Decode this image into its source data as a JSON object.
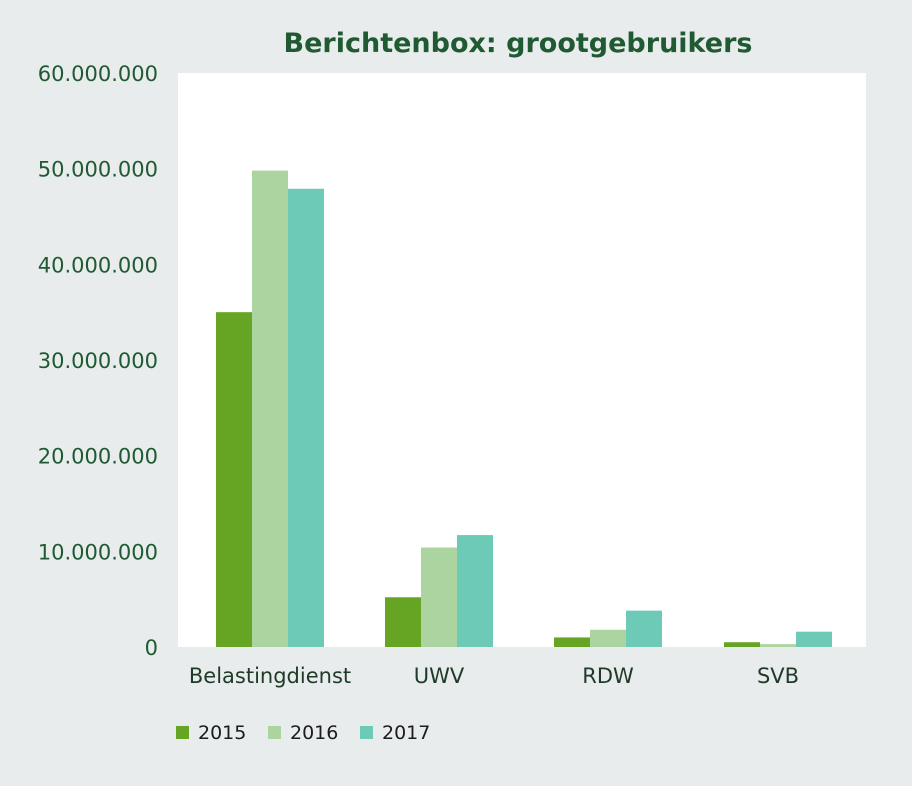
{
  "chart_data": {
    "type": "bar",
    "title": "Berichtenbox: grootgebruikers",
    "xlabel": "",
    "ylabel": "",
    "categories": [
      "Belastingdienst",
      "UWV",
      "RDW",
      "SVB"
    ],
    "series": [
      {
        "name": "2015",
        "color": "#66a524",
        "values": [
          35000000,
          5200000,
          1000000,
          500000
        ]
      },
      {
        "name": "2016",
        "color": "#abd4a0",
        "values": [
          49800000,
          10400000,
          1800000,
          300000
        ]
      },
      {
        "name": "2017",
        "color": "#6ccab6",
        "values": [
          47900000,
          11700000,
          3800000,
          1600000
        ]
      }
    ],
    "ylim": [
      0,
      60000000
    ],
    "yticks": [
      0,
      10000000,
      20000000,
      30000000,
      40000000,
      50000000,
      60000000
    ],
    "ytick_labels": [
      "0",
      "10.000.000",
      "20.000.000",
      "30.000.000",
      "40.000.000",
      "50.000.000",
      "60.000.000"
    ],
    "grid": false,
    "legend_position": "bottom-left",
    "plot_background": "#ffffff",
    "page_background": "#e8eced"
  }
}
